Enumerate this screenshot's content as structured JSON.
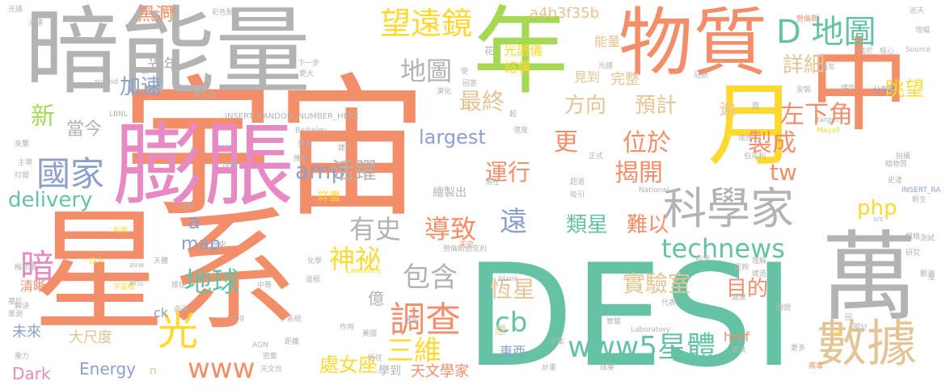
{
  "palette": {
    "orange": "#f28e69",
    "gray": "#b3b3b3",
    "green": "#66c2a5",
    "yellow": "#ffd92f",
    "pink": "#e78ac3",
    "blue": "#8da0cb",
    "lime": "#a6d854",
    "tan": "#e5c494"
  },
  "words": [
    {
      "text": "宇宙"
    },
    {
      "text": "星系"
    },
    {
      "text": "DESI"
    },
    {
      "text": "暗能量"
    },
    {
      "text": "膨脹"
    },
    {
      "text": "物質"
    },
    {
      "text": "年"
    },
    {
      "text": "中"
    },
    {
      "text": "月"
    },
    {
      "text": "萬"
    },
    {
      "text": "數據"
    },
    {
      "text": "科學家"
    },
    {
      "text": "望遠鏡"
    },
    {
      "text": "D 地圖"
    },
    {
      "text": "國家"
    },
    {
      "text": "調查"
    },
    {
      "text": "technews"
    },
    {
      "text": "www5星體"
    },
    {
      "text": "www"
    },
    {
      "text": "光"
    },
    {
      "text": "暗"
    },
    {
      "text": "包含"
    },
    {
      "text": "地球"
    },
    {
      "text": "神祕"
    },
    {
      "text": "有史"
    },
    {
      "text": "導致"
    },
    {
      "text": "遠"
    },
    {
      "text": "三維"
    },
    {
      "text": "cb"
    },
    {
      "text": "amp"
    },
    {
      "text": "活躍"
    },
    {
      "text": "運行"
    },
    {
      "text": "位於"
    },
    {
      "text": "揭開"
    },
    {
      "text": "tw"
    },
    {
      "text": "製成"
    },
    {
      "text": "左下角"
    },
    {
      "text": "眺望"
    },
    {
      "text": "詳細"
    },
    {
      "text": "地圖"
    },
    {
      "text": "加速"
    },
    {
      "text": "最終"
    },
    {
      "text": "預計"
    },
    {
      "text": "方向"
    },
    {
      "text": "delivery"
    },
    {
      "text": "新"
    },
    {
      "text": "當今"
    },
    {
      "text": "largest"
    },
    {
      "text": "更"
    },
    {
      "text": "php"
    },
    {
      "text": "實驗室"
    },
    {
      "text": "目的"
    },
    {
      "text": "恆星"
    },
    {
      "text": "類星"
    },
    {
      "text": "難以"
    },
    {
      "text": "處女座"
    },
    {
      "text": "天文學家"
    },
    {
      "text": "Energy"
    },
    {
      "text": "Dark"
    },
    {
      "text": "a"
    },
    {
      "text": "map"
    },
    {
      "text": "億"
    },
    {
      "text": "黑洞"
    },
    {
      "text": "光年"
    },
    {
      "text": "a4b3f35b"
    },
    {
      "text": "完整"
    },
    {
      "text": "能量"
    },
    {
      "text": "光譜儀"
    },
    {
      "text": "結構"
    },
    {
      "text": "href"
    },
    {
      "text": "逾"
    },
    {
      "text": "見到"
    },
    {
      "text": "大尺度"
    },
    {
      "text": "未來"
    },
    {
      "text": "清晰"
    },
    {
      "text": "ck"
    },
    {
      "text": "東西"
    },
    {
      "text": "學到"
    },
    {
      "text": "想"
    },
    {
      "text": "n"
    },
    {
      "text": "繪製出"
    },
    {
      "text": "詳盡"
    },
    {
      "text": "花"
    },
    {
      "text": "INSERT_RANDOM_NUMBER_HERE"
    },
    {
      "text": "zoneid"
    },
    {
      "text": "LBNL"
    },
    {
      "text": "Berkeley"
    },
    {
      "text": "National"
    },
    {
      "text": "Laboratory"
    },
    {
      "text": "Lawrence"
    },
    {
      "text": "Mayall"
    },
    {
      "text": "Source"
    },
    {
      "text": "INSERT_RA"
    },
    {
      "text": "target"
    },
    {
      "text": "_blank"
    },
    {
      "text": "AGN"
    },
    {
      "text": "avw"
    },
    {
      "text": "img"
    },
    {
      "text": "src"
    },
    {
      "text": "勞倫斯"
    },
    {
      "text": "勞倫斯伯克利"
    },
    {
      "text": "伯克利"
    },
    {
      "text": "分布圖"
    },
    {
      "text": "數十億"
    },
    {
      "text": "利用"
    },
    {
      "text": "宇宙膨"
    },
    {
      "text": "天文台"
    },
    {
      "text": "實驗"
    },
    {
      "text": "暗物質"
    },
    {
      "text": "光譜"
    },
    {
      "text": "彩色點"
    },
    {
      "text": "結束"
    },
    {
      "text": "巡天"
    },
    {
      "text": "增加"
    },
    {
      "text": "理解"
    },
    {
      "text": "建造"
    },
    {
      "text": "科學"
    },
    {
      "text": "關閉"
    },
    {
      "text": "病毒"
    },
    {
      "text": "更多"
    },
    {
      "text": "收集"
    },
    {
      "text": "成果"
    },
    {
      "text": "計畫"
    },
    {
      "text": "過往"
    },
    {
      "text": "天空"
    },
    {
      "text": "美國"
    },
    {
      "text": "距離"
    },
    {
      "text": "作用"
    },
    {
      "text": "重力"
    },
    {
      "text": "黑洞"
    },
    {
      "text": "星"
    },
    {
      "text": "基於"
    },
    {
      "text": "主導"
    },
    {
      "text": "打開"
    },
    {
      "text": "測試"
    },
    {
      "text": "新生"
    },
    {
      "text": "史達"
    },
    {
      "text": "拍攝"
    },
    {
      "text": "歷史"
    },
    {
      "text": "數位"
    },
    {
      "text": "比例"
    },
    {
      "text": "足夠"
    },
    {
      "text": "潛在"
    },
    {
      "text": "吸引"
    },
    {
      "text": "超過"
    },
    {
      "text": "正式"
    },
    {
      "text": "速度"
    },
    {
      "text": "觀測"
    },
    {
      "text": "解決"
    },
    {
      "text": "冠狀"
    },
    {
      "text": "爆炸"
    },
    {
      "text": "高於"
    },
    {
      "text": "核心"
    },
    {
      "text": "增幅"
    },
    {
      "text": "光譜"
    },
    {
      "text": "更大"
    },
    {
      "text": "下一步"
    },
    {
      "text": "持續"
    },
    {
      "text": "建立"
    },
    {
      "text": "推動"
    },
    {
      "text": "亮相"
    },
    {
      "text": "黯淡"
    },
    {
      "text": "化學"
    },
    {
      "text": "擇捉"
    },
    {
      "text": "密集"
    },
    {
      "text": "系統"
    },
    {
      "text": "遠度"
    },
    {
      "text": "圖"
    },
    {
      "text": "演化"
    },
    {
      "text": "回答"
    },
    {
      "text": "代表"
    },
    {
      "text": "中等"
    },
    {
      "text": "天體"
    },
    {
      "text": "拉入"
    },
    {
      "text": "梅耶爾"
    },
    {
      "text": "來繫"
    },
    {
      "text": "光譜"
    },
    {
      "text": "眼睛"
    },
    {
      "text": "研究"
    },
    {
      "text": "週年"
    },
    {
      "text": "安裝"
    },
    {
      "text": "超"
    },
    {
      "text": "使"
    },
    {
      "text": "命運"
    },
    {
      "text": "過程"
    },
    {
      "text": "部分"
    },
    {
      "text": "回"
    },
    {
      "text": "份"
    },
    {
      "text": "數"
    },
    {
      "text": "億年"
    }
  ]
}
